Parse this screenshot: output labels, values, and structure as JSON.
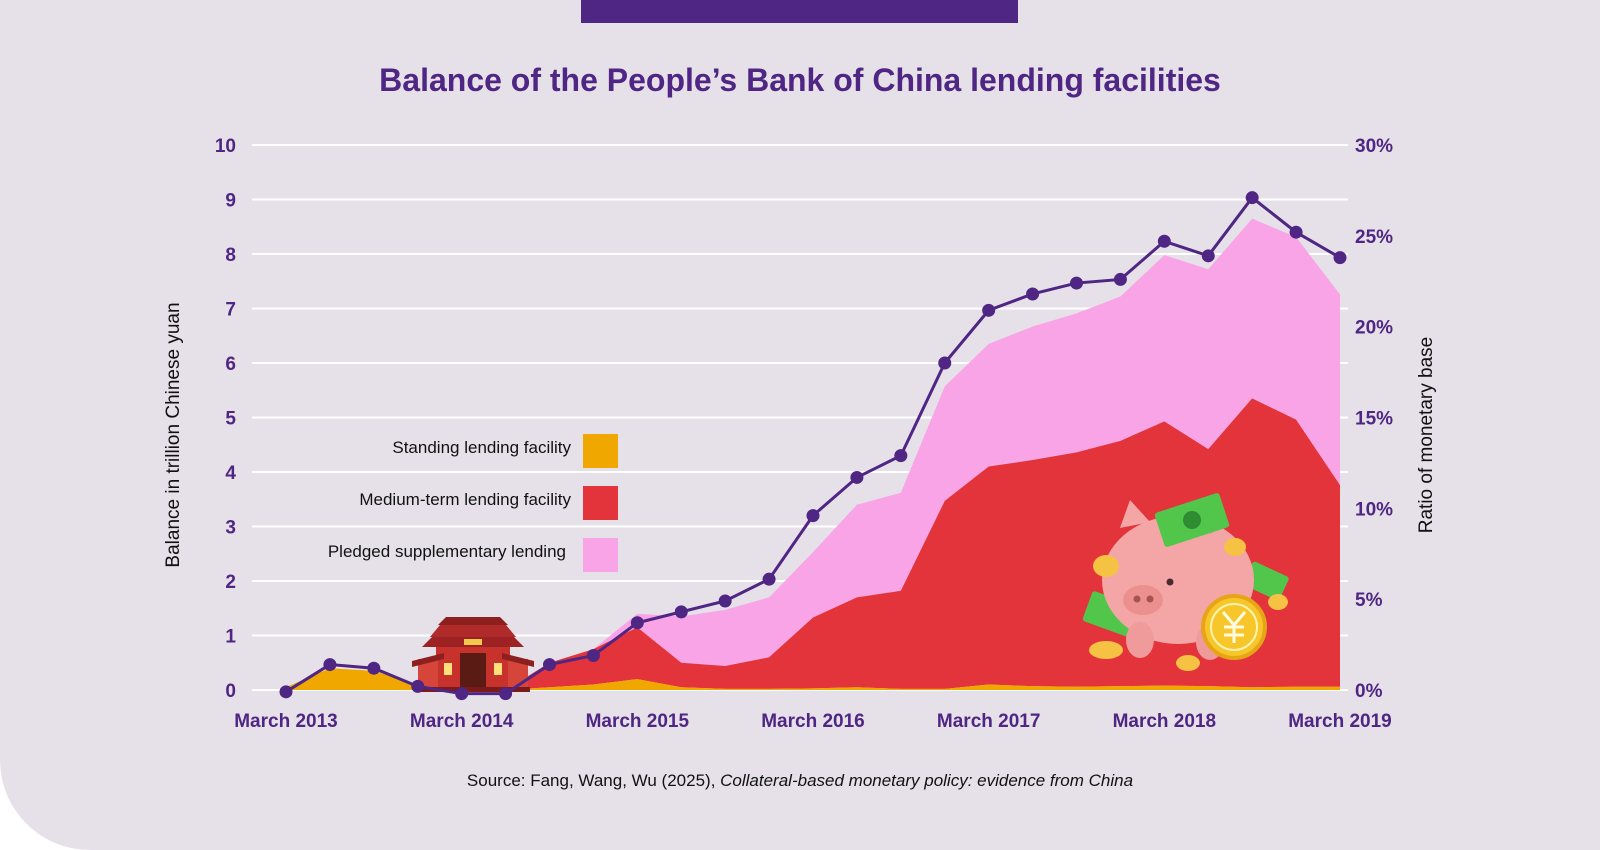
{
  "colors": {
    "accent": "#4f2683",
    "standing": "#f0a800",
    "medium": "#e3333b",
    "pledged": "#f8a4e6",
    "background": "#e6e1e8",
    "grid": "#ffffff"
  },
  "icons": [
    "chinese-gate-icon",
    "piggy-bank-yuan-icon"
  ],
  "chart_data": {
    "type": "area",
    "title": "Balance of the People’s Bank of China lending facilities",
    "ylabel_left": "Balance in trillion Chinese yuan",
    "ylabel_right": "Ratio of monetary base",
    "ylim_left": [
      0,
      10
    ],
    "ylim_right": [
      0,
      30
    ],
    "y_ticks_left": [
      "0",
      "1",
      "2",
      "3",
      "4",
      "5",
      "6",
      "7",
      "8",
      "9",
      "10"
    ],
    "y_ticks_right": [
      "0%",
      "5%",
      "10%",
      "15%",
      "20%",
      "25%",
      "30%"
    ],
    "x_labels": [
      {
        "label": "March 2013",
        "index": 0
      },
      {
        "label": "March 2014",
        "index": 4
      },
      {
        "label": "March 2015",
        "index": 8
      },
      {
        "label": "March 2016",
        "index": 12
      },
      {
        "label": "March 2017",
        "index": 16
      },
      {
        "label": "March 2018",
        "index": 20
      },
      {
        "label": "March 2019",
        "index": 24
      }
    ],
    "x": [
      "2013Q1",
      "2013Q2",
      "2013Q3",
      "2013Q4",
      "2014Q1",
      "2014Q2",
      "2014Q3",
      "2014Q4",
      "2015Q1",
      "2015Q2",
      "2015Q3",
      "2015Q4",
      "2016Q1",
      "2016Q2",
      "2016Q3",
      "2016Q4",
      "2017Q1",
      "2017Q2",
      "2017Q3",
      "2017Q4",
      "2018Q1",
      "2018Q2",
      "2018Q3",
      "2018Q4",
      "2019Q1"
    ],
    "grid": true,
    "legend_position": "center-left",
    "series": [
      {
        "name": "Standing lending facility",
        "key": "standing",
        "axis": "left",
        "type": "area",
        "values": [
          0.05,
          0.4,
          0.35,
          0.1,
          0.02,
          0.0,
          0.05,
          0.1,
          0.2,
          0.05,
          0.02,
          0.02,
          0.03,
          0.05,
          0.02,
          0.02,
          0.1,
          0.07,
          0.06,
          0.07,
          0.08,
          0.07,
          0.05,
          0.06,
          0.06
        ]
      },
      {
        "name": "Medium-term lending facility",
        "key": "medium",
        "axis": "left",
        "type": "area",
        "values": [
          0.0,
          0.0,
          0.0,
          0.0,
          0.0,
          0.0,
          0.45,
          0.65,
          0.95,
          0.45,
          0.42,
          0.58,
          1.3,
          1.65,
          1.8,
          3.45,
          4.0,
          4.15,
          4.3,
          4.5,
          4.85,
          4.35,
          5.3,
          4.9,
          3.7
        ]
      },
      {
        "name": "Pledged supplementary lending",
        "key": "pledged",
        "axis": "left",
        "type": "area",
        "values": [
          0.0,
          0.0,
          0.0,
          0.0,
          0.0,
          0.0,
          0.0,
          0.0,
          0.25,
          0.85,
          1.03,
          1.1,
          1.2,
          1.7,
          1.8,
          2.1,
          2.25,
          2.45,
          2.55,
          2.65,
          3.05,
          3.3,
          3.3,
          3.35,
          3.5
        ]
      },
      {
        "name": "Ratio of monetary base",
        "key": "ratio",
        "axis": "right",
        "type": "line",
        "values": [
          -0.1,
          1.4,
          1.2,
          0.2,
          -0.2,
          -0.2,
          1.4,
          1.9,
          3.7,
          4.3,
          4.9,
          6.1,
          9.6,
          11.7,
          12.9,
          18.0,
          20.9,
          21.8,
          22.4,
          22.6,
          24.7,
          23.9,
          27.1,
          25.2,
          23.8
        ]
      }
    ],
    "source_prefix": "Source: Fang, Wang, Wu (2025), ",
    "source_title": "Collateral-based monetary policy: evidence from China"
  }
}
